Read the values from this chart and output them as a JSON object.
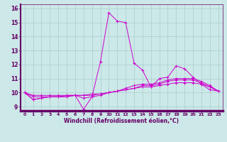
{
  "title": "",
  "xlabel": "Windchill (Refroidissement éolien,°C)",
  "xlim": [
    -0.5,
    23.5
  ],
  "ylim": [
    8.7,
    16.3
  ],
  "xticks": [
    0,
    1,
    2,
    3,
    4,
    5,
    6,
    7,
    8,
    9,
    10,
    11,
    12,
    13,
    14,
    15,
    16,
    17,
    18,
    19,
    20,
    21,
    22,
    23
  ],
  "yticks": [
    9,
    10,
    11,
    12,
    13,
    14,
    15,
    16
  ],
  "bg_color": "#cce8e8",
  "grid_color": "#aacece",
  "line_color": "#cc00cc",
  "axis_bar_color": "#660066",
  "tick_color": "#660066",
  "line1": [
    10.0,
    9.5,
    9.6,
    9.7,
    9.7,
    9.7,
    9.8,
    8.8,
    9.7,
    12.2,
    15.7,
    15.1,
    15.0,
    12.1,
    11.6,
    10.4,
    11.0,
    11.1,
    11.9,
    11.7,
    11.1,
    10.6,
    10.2,
    10.1
  ],
  "line2": [
    10.0,
    9.5,
    9.6,
    9.7,
    9.7,
    9.7,
    9.8,
    9.6,
    9.7,
    9.8,
    10.0,
    10.1,
    10.3,
    10.5,
    10.6,
    10.6,
    10.7,
    10.9,
    11.0,
    11.0,
    11.0,
    10.8,
    10.5,
    10.1
  ],
  "line3": [
    10.0,
    9.8,
    9.8,
    9.8,
    9.8,
    9.8,
    9.8,
    9.8,
    9.9,
    9.9,
    10.0,
    10.1,
    10.2,
    10.3,
    10.4,
    10.4,
    10.5,
    10.6,
    10.7,
    10.7,
    10.7,
    10.6,
    10.4,
    10.1
  ],
  "line4": [
    10.0,
    9.7,
    9.7,
    9.7,
    9.7,
    9.8,
    9.8,
    9.8,
    9.8,
    9.9,
    10.0,
    10.1,
    10.2,
    10.3,
    10.5,
    10.5,
    10.6,
    10.8,
    10.9,
    10.9,
    10.9,
    10.7,
    10.4,
    10.1
  ]
}
